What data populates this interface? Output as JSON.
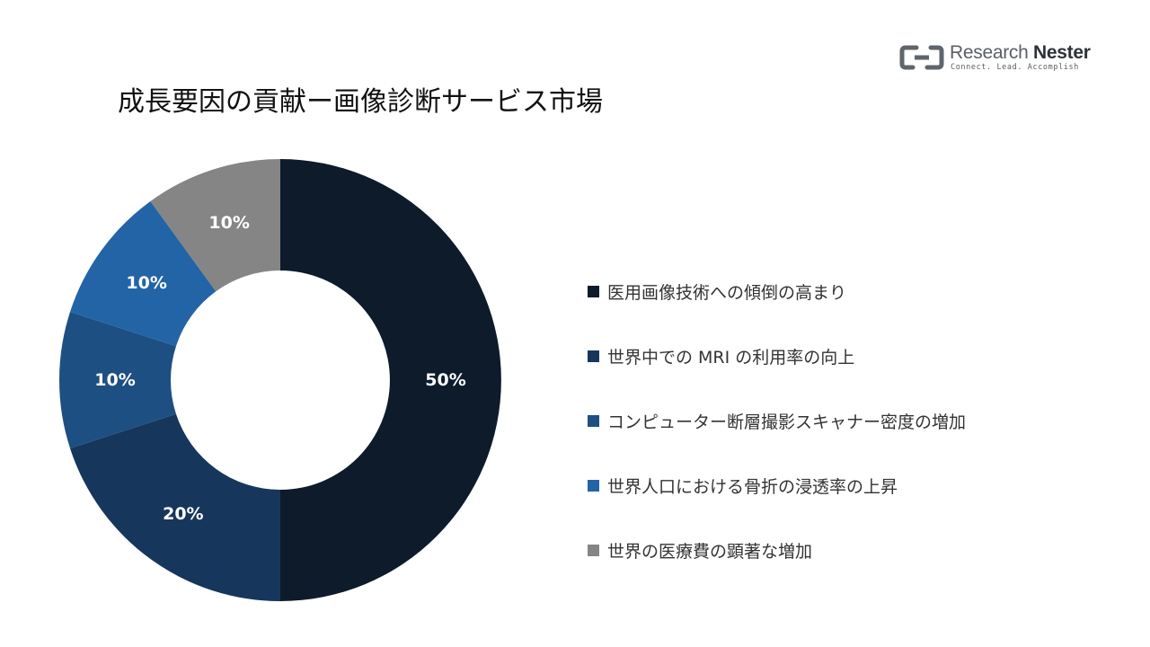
{
  "page": {
    "title": "成長要因の貢献ー画像診断サービス市場"
  },
  "logo": {
    "name_light": "Research",
    "name_bold": "Nester",
    "tagline": "Connect. Lead. Accomplish"
  },
  "chart_data": {
    "type": "pie",
    "variant": "donut",
    "title": "成長要因の貢献ー画像診断サービス市場",
    "legend_position": "right",
    "categories": [
      "医用画像技術への傾倒の高まり",
      "世界中での MRI の利用率の向上",
      "コンピューター断層撮影スキャナー密度の増加",
      "世界人口における骨折の浸透率の上昇",
      "世界の医療費の顕著な増加"
    ],
    "values": [
      50,
      20,
      10,
      10,
      10
    ],
    "data_labels": [
      "50%",
      "20%",
      "10%",
      "10%",
      "10%"
    ],
    "colors": [
      "#0d1b2a",
      "#16365c",
      "#1e4f82",
      "#2364a6",
      "#858585"
    ]
  }
}
